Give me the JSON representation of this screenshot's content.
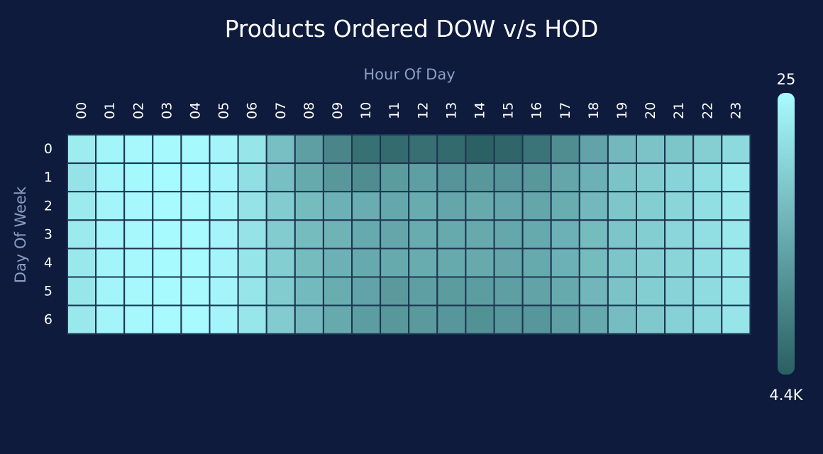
{
  "chart_data": {
    "type": "heatmap",
    "title": "Products Ordered DOW v/s HOD",
    "xlabel": "Hour Of Day",
    "ylabel": "Day Of Week",
    "x_categories": [
      "00",
      "01",
      "02",
      "03",
      "04",
      "05",
      "06",
      "07",
      "08",
      "09",
      "10",
      "11",
      "12",
      "13",
      "14",
      "15",
      "16",
      "17",
      "18",
      "19",
      "20",
      "21",
      "22",
      "23"
    ],
    "y_categories": [
      "0",
      "1",
      "2",
      "3",
      "4",
      "5",
      "6"
    ],
    "values": [
      [
        450,
        180,
        110,
        80,
        80,
        200,
        650,
        1700,
        2600,
        3300,
        3900,
        4050,
        3950,
        4100,
        4350,
        4200,
        3800,
        3100,
        2500,
        1900,
        1600,
        1550,
        1250,
        950
      ],
      [
        700,
        200,
        120,
        60,
        80,
        200,
        800,
        1700,
        2300,
        2800,
        3100,
        2700,
        2600,
        2900,
        2800,
        2900,
        2800,
        2400,
        2100,
        1600,
        1350,
        1150,
        850,
        500
      ],
      [
        500,
        200,
        100,
        60,
        70,
        200,
        700,
        1350,
        1800,
        2100,
        2200,
        2350,
        2250,
        2400,
        2300,
        2400,
        2400,
        2200,
        1900,
        1500,
        1300,
        1100,
        800,
        550
      ],
      [
        500,
        200,
        110,
        60,
        60,
        200,
        700,
        1350,
        1800,
        2050,
        2300,
        2400,
        2250,
        2300,
        2300,
        2350,
        2300,
        2100,
        1800,
        1550,
        1300,
        1050,
        800,
        550
      ],
      [
        550,
        200,
        110,
        60,
        60,
        200,
        650,
        1300,
        1800,
        2100,
        2300,
        2300,
        2250,
        2300,
        2300,
        2400,
        2300,
        2100,
        1800,
        1550,
        1250,
        1100,
        800,
        550
      ],
      [
        600,
        200,
        110,
        60,
        70,
        200,
        650,
        1350,
        1850,
        2200,
        2500,
        2750,
        2600,
        2700,
        2650,
        2600,
        2500,
        2300,
        1950,
        1600,
        1300,
        1150,
        900,
        600
      ],
      [
        550,
        200,
        120,
        60,
        60,
        180,
        600,
        1350,
        1900,
        2300,
        2650,
        2800,
        2750,
        2850,
        3000,
        2850,
        2850,
        2600,
        2300,
        1750,
        1450,
        1200,
        950,
        650
      ]
    ],
    "color_min": 25,
    "color_max": 4400,
    "color_range_labels": {
      "max": "4.4K",
      "min": "25"
    },
    "color_scale": {
      "low": "#a8fbff",
      "high": "#2a5f62"
    },
    "grid_line_color": "#1e3450",
    "legend_placement": "right"
  }
}
